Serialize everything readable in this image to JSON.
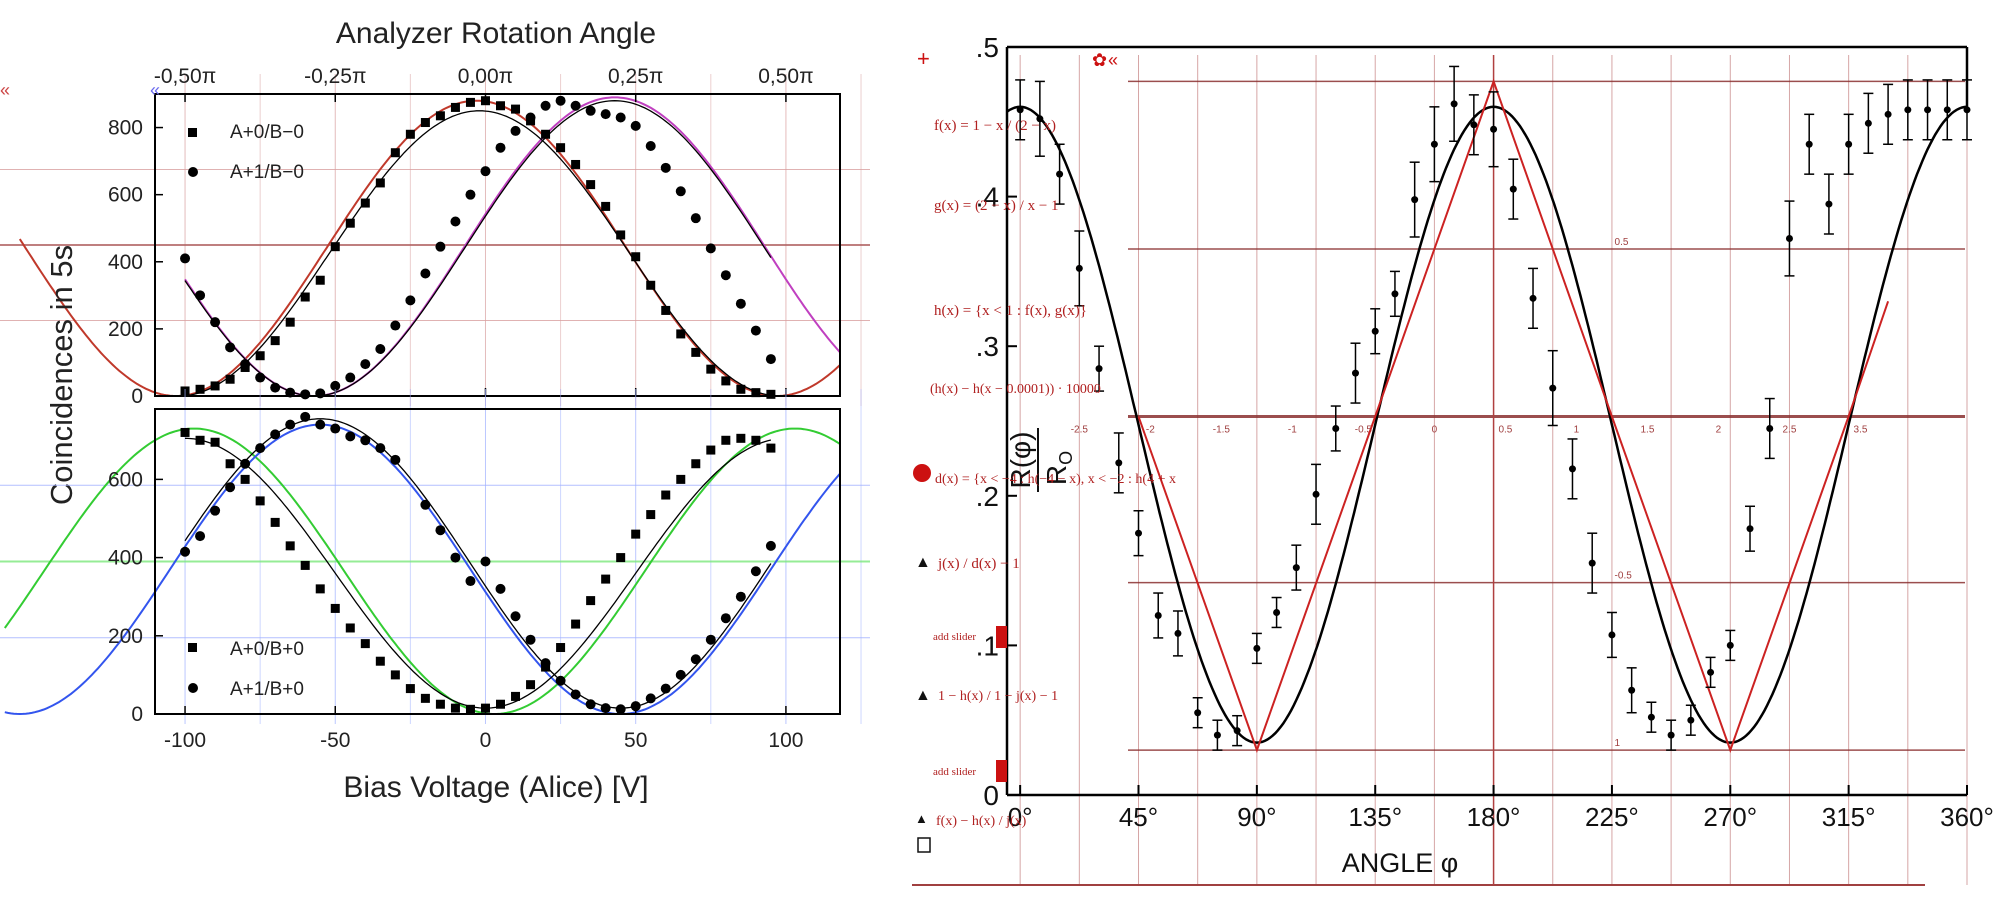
{
  "chart_data": [
    {
      "type": "scatter",
      "panel": "left-top",
      "title": "Analyzer Rotation Angle",
      "xlabel": "Bias Voltage (Alice) [V]",
      "ylabel": "Coincidences in 5s",
      "xlim": [
        -110,
        118
      ],
      "ylim": [
        0,
        900
      ],
      "x_ticks": [
        -100,
        -50,
        0,
        50,
        100
      ],
      "y_ticks": [
        0,
        200,
        400,
        600,
        800
      ],
      "y_tick_labels": [
        "0",
        "200",
        "400",
        "600",
        "800"
      ],
      "top_axis_ticks": [
        {
          "x": -100,
          "label": "-0,50π"
        },
        {
          "x": -50,
          "label": "-0,25π"
        },
        {
          "x": 0,
          "label": "0,00π"
        },
        {
          "x": 50,
          "label": "0,25π"
        },
        {
          "x": 100,
          "label": "0,50π"
        }
      ],
      "legend_position": "top-left",
      "series": [
        {
          "name": "A+0/B−0",
          "marker": "square",
          "x": [
            -100,
            -95,
            -90,
            -85,
            -80,
            -75,
            -70,
            -65,
            -60,
            -55,
            -50,
            -45,
            -40,
            -35,
            -30,
            -25,
            -20,
            -15,
            -10,
            -5,
            0,
            5,
            10,
            15,
            20,
            25,
            30,
            35,
            40,
            45,
            50,
            55,
            60,
            65,
            70,
            75,
            80,
            85,
            90,
            95
          ],
          "y": [
            15,
            20,
            30,
            50,
            85,
            120,
            165,
            220,
            295,
            345,
            445,
            515,
            575,
            635,
            725,
            780,
            815,
            835,
            860,
            875,
            880,
            865,
            855,
            820,
            780,
            740,
            690,
            630,
            565,
            480,
            415,
            330,
            255,
            185,
            130,
            80,
            45,
            20,
            10,
            5
          ]
        },
        {
          "name": "A+1/B−0",
          "marker": "circle",
          "x": [
            -100,
            -95,
            -90,
            -85,
            -80,
            -75,
            -70,
            -65,
            -60,
            -55,
            -50,
            -45,
            -40,
            -35,
            -30,
            -25,
            -20,
            -15,
            -10,
            -5,
            0,
            5,
            10,
            15,
            20,
            25,
            30,
            35,
            40,
            45,
            50,
            55,
            60,
            65,
            70,
            75,
            80,
            85,
            90,
            95
          ],
          "y": [
            410,
            300,
            220,
            145,
            95,
            55,
            25,
            10,
            5,
            8,
            30,
            55,
            95,
            140,
            210,
            285,
            365,
            445,
            520,
            600,
            670,
            740,
            790,
            830,
            865,
            880,
            865,
            850,
            840,
            830,
            805,
            745,
            680,
            610,
            530,
            440,
            360,
            275,
            195,
            110
          ]
        },
        {
          "name": "fit A+0/B−0",
          "marker": "line",
          "color": "#000000",
          "amp": 425,
          "offset": 425,
          "x_peak": -2,
          "period": 200,
          "x_range": [
            -100,
            95
          ]
        },
        {
          "name": "fit A+1/B−0",
          "marker": "line",
          "color": "#000000",
          "amp": 440,
          "offset": 440,
          "x_peak": 43,
          "period": 200,
          "x_range": [
            -100,
            95
          ]
        },
        {
          "name": "overlay red",
          "marker": "line",
          "color": "#c0392b",
          "amp": 440,
          "offset": 440,
          "x_peak": -3,
          "period": 200,
          "x_range": [
            -155,
            118
          ]
        },
        {
          "name": "overlay magenta",
          "marker": "line",
          "color": "#c040c0",
          "amp": 445,
          "offset": 445,
          "x_peak": 43,
          "period": 200,
          "x_range": [
            -100,
            118
          ]
        }
      ]
    },
    {
      "type": "scatter",
      "panel": "left-bottom",
      "xlabel": "Bias Voltage (Alice) [V]",
      "xlim": [
        -110,
        118
      ],
      "ylim": [
        0,
        780
      ],
      "x_ticks": [
        -100,
        -50,
        0,
        50,
        100
      ],
      "x_tick_labels": [
        "-100",
        "-50",
        "0",
        "50",
        "100"
      ],
      "y_ticks": [
        0,
        200,
        400,
        600
      ],
      "y_tick_labels": [
        "0",
        "200",
        "400",
        "600"
      ],
      "legend_position": "bottom-left",
      "series": [
        {
          "name": "A+0/B+0",
          "marker": "square",
          "x": [
            -100,
            -95,
            -90,
            -85,
            -80,
            -75,
            -70,
            -65,
            -60,
            -55,
            -50,
            -45,
            -40,
            -35,
            -30,
            -25,
            -20,
            -15,
            -10,
            -5,
            0,
            5,
            10,
            15,
            20,
            25,
            30,
            35,
            40,
            45,
            50,
            55,
            60,
            65,
            70,
            75,
            80,
            85,
            90,
            95
          ],
          "y": [
            720,
            700,
            695,
            640,
            600,
            545,
            490,
            430,
            380,
            320,
            270,
            220,
            180,
            135,
            100,
            65,
            40,
            25,
            15,
            12,
            15,
            25,
            45,
            75,
            120,
            170,
            230,
            290,
            345,
            400,
            460,
            510,
            560,
            600,
            640,
            675,
            700,
            705,
            700,
            680
          ]
        },
        {
          "name": "A+1/B+0",
          "marker": "circle",
          "x": [
            -100,
            -95,
            -90,
            -85,
            -80,
            -75,
            -70,
            -65,
            -60,
            -55,
            -50,
            -45,
            -40,
            -35,
            -30,
            -20,
            -15,
            -10,
            -5,
            0,
            5,
            10,
            15,
            20,
            25,
            30,
            35,
            40,
            45,
            50,
            55,
            60,
            65,
            70,
            75,
            80,
            85,
            90,
            95
          ],
          "y": [
            415,
            455,
            520,
            580,
            640,
            680,
            715,
            740,
            760,
            740,
            730,
            710,
            700,
            680,
            650,
            535,
            470,
            400,
            340,
            390,
            320,
            250,
            190,
            130,
            85,
            50,
            25,
            15,
            12,
            20,
            40,
            65,
            100,
            140,
            190,
            245,
            300,
            365,
            430
          ]
        },
        {
          "name": "fit A+0/B+0",
          "marker": "line",
          "color": "#000000",
          "amp": 345,
          "offset": 360,
          "x_peak": -100,
          "period": 200,
          "x_range": [
            -100,
            95
          ]
        },
        {
          "name": "fit A+1/B+0",
          "marker": "line",
          "color": "#000000",
          "amp": 370,
          "offset": 385,
          "x_peak": -55,
          "period": 200,
          "x_range": [
            -100,
            95
          ]
        },
        {
          "name": "overlay green",
          "marker": "line",
          "color": "#33cc33",
          "amp": 365,
          "offset": 365,
          "x_peak": -97,
          "period": 200,
          "x_range": [
            -160,
            118
          ]
        },
        {
          "name": "overlay blue",
          "marker": "line",
          "color": "#3355ee",
          "amp": 370,
          "offset": 370,
          "x_peak": -55,
          "period": 200,
          "x_range": [
            -160,
            118
          ]
        }
      ]
    },
    {
      "type": "line",
      "panel": "right",
      "xlabel": "ANGLE φ",
      "ylabel_main": "R(φ)",
      "ylabel_sub": "R",
      "ylabel_sub_index": "O",
      "xlim": [
        -5,
        360
      ],
      "ylim": [
        0,
        0.5
      ],
      "x_ticks": [
        0,
        45,
        90,
        135,
        180,
        225,
        270,
        315,
        360
      ],
      "x_tick_labels": [
        "0°",
        "45°",
        "90°",
        "135°",
        "180°",
        "225°",
        "270°",
        "315°",
        "360°"
      ],
      "y_ticks": [
        0,
        0.1,
        0.2,
        0.3,
        0.4,
        0.5
      ],
      "y_tick_labels": [
        "0",
        ".1",
        ".2",
        ".3",
        ".4",
        ".5"
      ],
      "series": [
        {
          "name": "data",
          "marker": "circle-errorbar",
          "x": [
            0,
            7.5,
            15,
            22.5,
            30,
            37.5,
            45,
            52.5,
            60,
            67.5,
            75,
            82.5,
            90,
            97.5,
            105,
            112.5,
            120,
            127.5,
            135,
            142.5,
            150,
            157.5,
            165,
            172.5,
            180,
            187.5,
            195,
            202.5,
            210,
            217.5,
            225,
            232.5,
            240,
            247.5,
            255,
            262.5,
            270,
            277.5,
            285,
            292.5,
            300,
            307.5,
            315,
            322.5,
            330,
            337.5,
            345,
            352.5,
            360
          ],
          "y": [
            0.458,
            0.452,
            0.415,
            0.352,
            0.285,
            0.222,
            0.175,
            0.12,
            0.108,
            0.055,
            0.04,
            0.043,
            0.098,
            0.122,
            0.152,
            0.201,
            0.245,
            0.282,
            0.31,
            0.335,
            0.398,
            0.435,
            0.462,
            0.448,
            0.445,
            0.405,
            0.332,
            0.272,
            0.218,
            0.155,
            0.107,
            0.07,
            0.052,
            0.04,
            0.05,
            0.082,
            0.1,
            0.178,
            0.245,
            0.372,
            0.435,
            0.395,
            0.435,
            0.449,
            0.455,
            0.458,
            0.458,
            0.458,
            0.458
          ],
          "err": [
            0.02,
            0.025,
            0.02,
            0.025,
            0.015,
            0.02,
            0.015,
            0.015,
            0.015,
            0.01,
            0.01,
            0.01,
            0.01,
            0.01,
            0.015,
            0.02,
            0.015,
            0.02,
            0.015,
            0.015,
            0.025,
            0.025,
            0.025,
            0.02,
            0.025,
            0.02,
            0.02,
            0.025,
            0.02,
            0.02,
            0.015,
            0.015,
            0.01,
            0.01,
            0.01,
            0.01,
            0.01,
            0.015,
            0.02,
            0.025,
            0.02,
            0.02,
            0.02,
            0.02,
            0.02,
            0.02,
            0.02,
            0.02,
            0.02
          ]
        },
        {
          "name": "theory",
          "marker": "line",
          "color": "#000000",
          "amp": 0.2125,
          "offset": 0.2475,
          "period": 180,
          "x_peak": 0
        },
        {
          "name": "linear",
          "marker": "line",
          "color": "#cc2222",
          "x": [
            45,
            90,
            135,
            180,
            225,
            270,
            315,
            330
          ],
          "y": [
            0.253,
            0.03,
            0.253,
            0.477,
            0.253,
            0.03,
            0.253,
            0.33
          ]
        }
      ]
    }
  ],
  "annotations": {
    "f": "f(x) = 1 − x / (2 − x)",
    "g": "g(x) = (2 − x) / x − 1",
    "h": "h(x) = {x < 1 : f(x), g(x)}",
    "k": "(h(x) − h(x − 0.0001)) · 10000",
    "d": "d(x) = {x < −4 : h(−4 − x), x < −2 : h(4 + x",
    "j_over_d": "j(x) / d(x) − 1",
    "add_slider": "add slider",
    "ratio": "1 − h(x) / 1 − j(x) − 1",
    "last": "f(x) − h(x) / j(x)",
    "small_ticks": [
      "-2.5",
      "-2",
      "-1.5",
      "-1",
      "-0.5",
      "0",
      "0.5",
      "1",
      "1.5",
      "2",
      "2.5",
      "3.5"
    ],
    "half_mark": "0.5",
    "neg_half_mark": "-0.5",
    "one_mark": "1"
  },
  "colors": {
    "axis": "#000000",
    "grid_overlay_red": "#a04040",
    "grid_overlay_green": "#7de87d",
    "grid_overlay_blue": "#8fa0ff",
    "annotation_red": "#b02020"
  }
}
